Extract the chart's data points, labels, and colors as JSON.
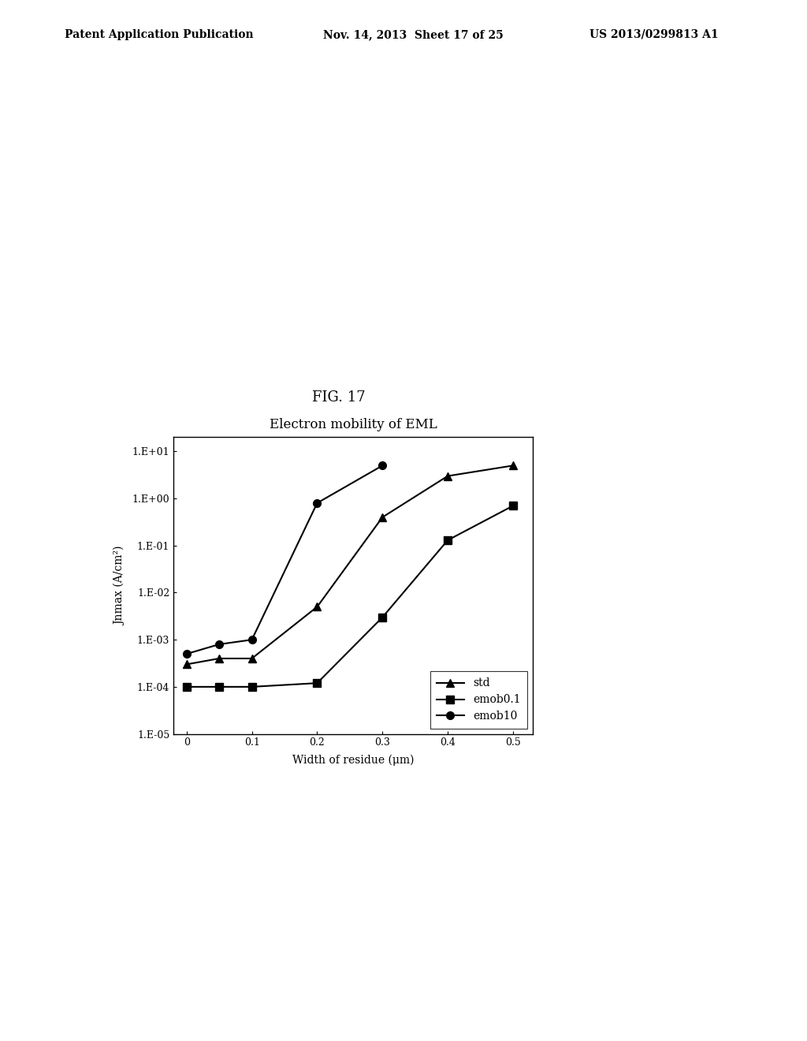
{
  "title": "Electron mobility of EML",
  "xlabel": "Width of residue (μm)",
  "ylabel": "Jnmax (A/cm²)",
  "fig_label": "FIG. 17",
  "header_left": "Patent Application Publication",
  "header_mid": "Nov. 14, 2013  Sheet 17 of 25",
  "header_right": "US 2013/0299813 A1",
  "x": [
    0,
    0.05,
    0.1,
    0.2,
    0.3,
    0.4,
    0.5
  ],
  "std": [
    0.0003,
    0.0004,
    0.0004,
    0.005,
    0.4,
    3.0,
    5.0
  ],
  "emob01": [
    0.0001,
    0.0001,
    0.0001,
    0.00012,
    0.003,
    0.13,
    0.7
  ],
  "emob10": [
    0.0005,
    0.0008,
    0.001,
    0.8,
    5.0,
    null,
    null
  ],
  "ylim_min": 1e-05,
  "ylim_max": 20.0,
  "yticks": [
    1e-05,
    0.0001,
    0.001,
    0.01,
    0.1,
    1.0,
    10.0
  ],
  "ytick_labels": [
    "1.E-05",
    "1.E-04",
    "1.E-03",
    "1.E-02",
    "1.E-01",
    "1.E+00",
    "1.E+01"
  ],
  "xticks": [
    0,
    0.1,
    0.2,
    0.3,
    0.4,
    0.5
  ],
  "xtick_labels": [
    "0",
    "0.1",
    "0.2",
    "0.3",
    "0.4",
    "0.5"
  ],
  "legend_labels": [
    "std",
    "emob0.1",
    "emob10"
  ],
  "background_color": "#ffffff",
  "line_color": "#000000",
  "marker_std": "^",
  "marker_emob01": "s",
  "marker_emob10": "o",
  "markersize": 7,
  "linewidth": 1.5,
  "title_fontsize": 12,
  "label_fontsize": 10,
  "tick_fontsize": 9,
  "legend_fontsize": 10
}
